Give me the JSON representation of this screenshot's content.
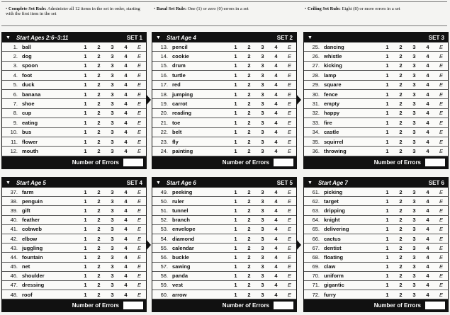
{
  "rules": [
    {
      "title": "Complete Set Rule:",
      "text": "Administer all 12 items in the set in order, starting with the first item in the set"
    },
    {
      "title": "Basal Set Rule:",
      "text": "One (1) or zero (0) errors in a set"
    },
    {
      "title": "Ceiling Set Rule:",
      "text": "Eight (8) or more errors in a set"
    }
  ],
  "score_options": [
    "1",
    "2",
    "3",
    "4",
    "E"
  ],
  "footer_label": "Number of Errors",
  "sets": [
    {
      "start": "Start Ages 2:6–3:11",
      "set": "SET 1",
      "items": [
        "ball",
        "dog",
        "spoon",
        "foot",
        "duck",
        "banana",
        "shoe",
        "cup",
        "eating",
        "bus",
        "flower",
        "mouth"
      ]
    },
    {
      "start": "Start Age 4",
      "set": "SET 2",
      "items": [
        "pencil",
        "cookie",
        "drum",
        "turtle",
        "red",
        "jumping",
        "carrot",
        "reading",
        "toe",
        "belt",
        "fly",
        "painting"
      ]
    },
    {
      "start": "",
      "set": "SET 3",
      "items": [
        "dancing",
        "whistle",
        "kicking",
        "lamp",
        "square",
        "fence",
        "empty",
        "happy",
        "fire",
        "castle",
        "squirrel",
        "throwing"
      ]
    },
    {
      "start": "Start Age 5",
      "set": "SET 4",
      "items": [
        "farm",
        "penguin",
        "gift",
        "feather",
        "cobweb",
        "elbow",
        "juggling",
        "fountain",
        "net",
        "shoulder",
        "dressing",
        "roof"
      ]
    },
    {
      "start": "Start Age 6",
      "set": "SET 5",
      "items": [
        "peeking",
        "ruler",
        "tunnel",
        "branch",
        "envelope",
        "diamond",
        "calendar",
        "buckle",
        "sawing",
        "panda",
        "vest",
        "arrow"
      ]
    },
    {
      "start": "Start Age 7",
      "set": "SET 6",
      "items": [
        "picking",
        "target",
        "dripping",
        "knight",
        "delivering",
        "cactus",
        "dentist",
        "floating",
        "claw",
        "uniform",
        "gigantic",
        "furry"
      ]
    }
  ]
}
